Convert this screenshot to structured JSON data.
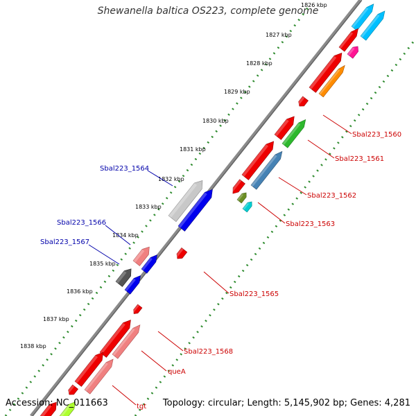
{
  "title": "Shewanella baltica OS223, complete genome",
  "accession": "Accession: NC_011663",
  "topology": "Topology: circular; Length: 5,145,902 bp; Genes: 4,281",
  "colors": {
    "backbone": "#8a8a8a",
    "tick": "#2e8b2e",
    "label_blue": "#0000aa",
    "label_red": "#cc0000"
  },
  "ticks": [
    {
      "label": "1826 kbp"
    },
    {
      "label": "1827 kbp"
    },
    {
      "label": "1828 kbp"
    },
    {
      "label": "1829 kbp"
    },
    {
      "label": "1830 kbp"
    },
    {
      "label": "1831 kbp"
    },
    {
      "label": "1832 kbp"
    },
    {
      "label": "1833 kbp"
    },
    {
      "label": "1834 kbp"
    },
    {
      "label": "1835 kbp"
    },
    {
      "label": "1836 kbp"
    },
    {
      "label": "1837 kbp"
    },
    {
      "label": "1838 kbp"
    }
  ],
  "gene_labels": [
    {
      "text": "Sbal223_1564",
      "color": "blue"
    },
    {
      "text": "Sbal223_1566",
      "color": "blue"
    },
    {
      "text": "Sbal223_1567",
      "color": "blue"
    },
    {
      "text": "Sbal223_1560",
      "color": "red"
    },
    {
      "text": "Sbal223_1561",
      "color": "red"
    },
    {
      "text": "Sbal223_1562",
      "color": "red"
    },
    {
      "text": "Sbal223_1563",
      "color": "red"
    },
    {
      "text": "Sbal223_1565",
      "color": "red"
    },
    {
      "text": "Sbal223_1568",
      "color": "red"
    },
    {
      "text": "queA",
      "color": "red"
    },
    {
      "text": "tgt",
      "color": "red"
    }
  ]
}
